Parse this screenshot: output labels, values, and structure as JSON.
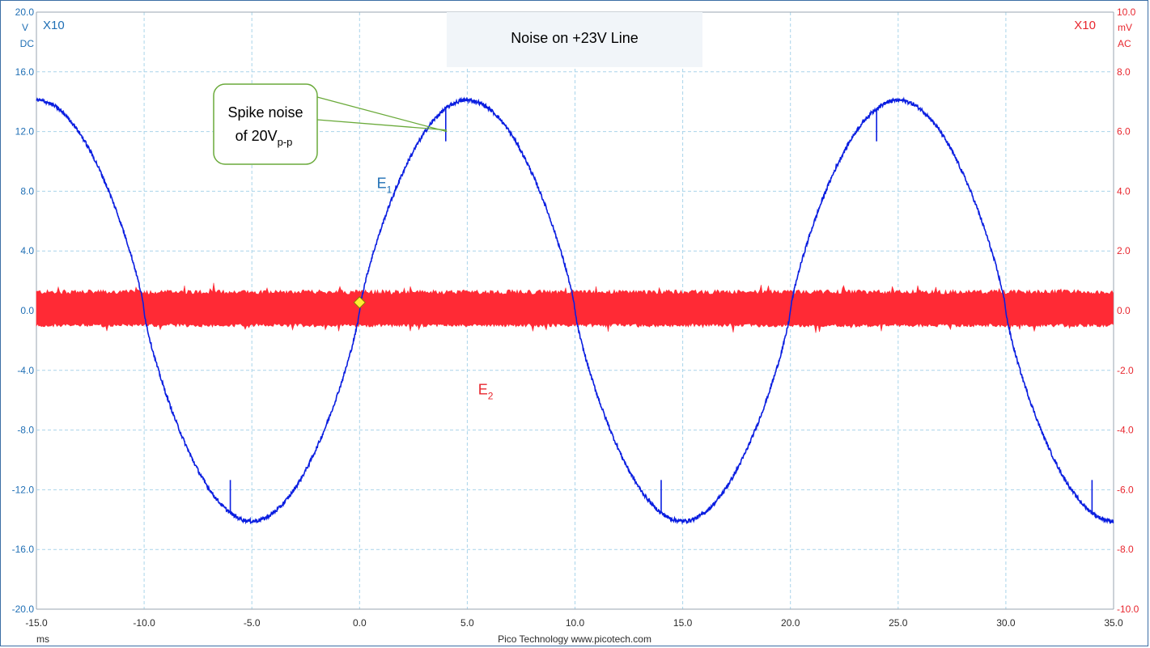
{
  "chart_data": {
    "type": "line",
    "title": "Noise on +23V Line",
    "x": {
      "range": [
        -15.0,
        35.0
      ],
      "tick_values": [
        -15,
        -10,
        -5,
        0,
        5,
        10,
        15,
        20,
        25,
        30,
        35
      ],
      "tick_labels": [
        "-15.0",
        "-10.0",
        "-5.0",
        "0.0",
        "5.0",
        "10.0",
        "15.0",
        "20.0",
        "25.0",
        "30.0",
        "35.0"
      ],
      "unit": "ms"
    },
    "y_left": {
      "range": [
        -20.0,
        20.0
      ],
      "tick_values": [
        20,
        16,
        12,
        8,
        4,
        0,
        -4,
        -8,
        -12,
        -16,
        -20
      ],
      "tick_labels": [
        "20.0",
        "16.0",
        "12.0",
        "8.0",
        "4.0",
        "0.0",
        "-4.0",
        "-8.0",
        "-12.0",
        "-16.0",
        "-20.0"
      ],
      "unit": "V",
      "coupling": "DC",
      "probe": "X10",
      "color": "#1f6fb5"
    },
    "y_right": {
      "range": [
        -10.0,
        10.0
      ],
      "tick_values": [
        10,
        8,
        6,
        4,
        2,
        0,
        -2,
        -4,
        -6,
        -8,
        -10
      ],
      "tick_labels": [
        "10.0",
        "8.0",
        "6.0",
        "4.0",
        "2.0",
        "0.0",
        "-2.0",
        "-4.0",
        "-6.0",
        "-8.0",
        "-10.0"
      ],
      "unit": "mV",
      "coupling": "AC",
      "probe": "X10",
      "color": "#e8262e"
    },
    "grid": true,
    "series": [
      {
        "name": "E",
        "subscript": "1",
        "axis": "left",
        "color": "#0a1ee0",
        "shape": "sine",
        "amplitude": 14.1,
        "period_ms": 20,
        "zero_crossing_ms": 0,
        "spikes_ms": [
          -6.0,
          4.0,
          14.0,
          24.0,
          34.0
        ],
        "spike_amplitude": 2.2,
        "label_at": {
          "x": 0.8,
          "y": 8.2
        }
      },
      {
        "name": "E",
        "subscript": "2",
        "axis": "right",
        "color": "#ff2a35",
        "shape": "noise_band",
        "band": [
          -0.55,
          0.7
        ],
        "label_at": {
          "x": 5.5,
          "y": -2.8
        }
      }
    ],
    "trigger_marker": {
      "x": 0.0,
      "y": 0.55,
      "color": "#ffee33"
    },
    "annotation": {
      "line1": "Spike noise",
      "line2_main": "of 20V",
      "line2_sub": "p-p",
      "points_to": [
        {
          "x": 3.3,
          "y": 12.5
        },
        {
          "x": 3.3,
          "y": 12.1
        }
      ]
    }
  },
  "footer": {
    "credit": "Pico Technology  www.picotech.com"
  }
}
